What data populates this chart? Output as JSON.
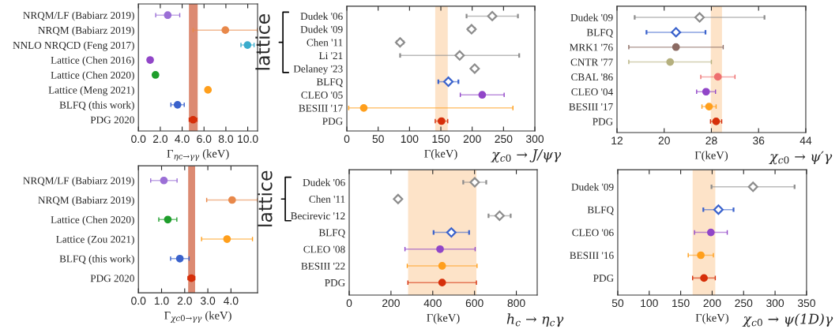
{
  "chart_data": [
    {
      "type": "scatter",
      "orientation": "horizontal",
      "categories": [
        "NRQM/LF (Babiarz 2019)",
        "NRQM (Babiarz 2019)",
        "NNLO NRQCD (Feng 2017)",
        "Lattice (Chen 2016)",
        "Lattice (Chen 2020)",
        "Lattice (Meng 2021)",
        "BLFQ (this work)",
        "PDG 2020"
      ],
      "series": [
        {
          "marker": "circle",
          "colors": [
            "#9b6fd6",
            "#e8884a",
            "#3aaccc",
            "#9146c8",
            "#1f9e2c",
            "#ff9f1c",
            "#3a62cc",
            "#d62f0a"
          ],
          "values": [
            2.68,
            7.95,
            9.98,
            1.07,
            1.56,
            6.36,
            3.58,
            5.0
          ],
          "errors": [
            1.1,
            2.95,
            0.6,
            0.05,
            0.1,
            0.1,
            0.61,
            0.36
          ]
        }
      ],
      "xlim": [
        0,
        10.9
      ],
      "xticks": [
        {
          "value": 0,
          "label": "0.0"
        },
        {
          "value": 2,
          "label": "2.0"
        },
        {
          "value": 4,
          "label": "4.0"
        },
        {
          "value": 6,
          "label": "6.0"
        },
        {
          "value": 8,
          "label": "8.0"
        },
        {
          "value": 10,
          "label": "10.0"
        }
      ],
      "xlabel": "Γ$_{ηc→γγ}$ (keV)",
      "bands": [
        {
          "axis": "x",
          "from": 4.62,
          "to": 5.42,
          "color": "#dc8a72"
        }
      ]
    },
    {
      "type": "scatter",
      "orientation": "horizontal",
      "categories": [
        "Dudek '06",
        "Dudek '09",
        "Chen '11",
        "Li '21",
        "Delaney '23",
        "BLFQ",
        "CLEO '05",
        "BESIII '17",
        "PDG"
      ],
      "series": [
        {
          "marker": "diamond",
          "colors": [
            "#8c8c8c",
            "#8c8c8c",
            "#8c8c8c",
            "#8c8c8c",
            "#8c8c8c",
            null,
            null,
            null,
            null
          ],
          "values": [
            232,
            199,
            85,
            180,
            204,
            null,
            null,
            null,
            null
          ],
          "errors": [
            41,
            5,
            5,
            95,
            4,
            null,
            null,
            null,
            null
          ]
        },
        {
          "marker": "diamond",
          "colors": [
            null,
            null,
            null,
            null,
            null,
            "#3a62cc",
            null,
            null,
            null
          ],
          "values": [
            null,
            null,
            null,
            null,
            null,
            162,
            null,
            null,
            null
          ],
          "errors": [
            null,
            null,
            null,
            null,
            null,
            16,
            null,
            null,
            null
          ]
        },
        {
          "marker": "circle",
          "colors": [
            null,
            null,
            null,
            null,
            null,
            null,
            "#9146c8",
            "#ff9f1c",
            "#d62f0a"
          ],
          "values": [
            null,
            null,
            null,
            null,
            null,
            null,
            216,
            27,
            151
          ],
          "errors": [
            null,
            null,
            null,
            null,
            null,
            null,
            35,
            [
              3,
              265
            ],
            10
          ]
        }
      ],
      "xlim": [
        0,
        300
      ],
      "xticks": [
        0,
        50,
        100,
        150,
        200,
        250,
        300
      ],
      "xlabel": "Γ(keV)",
      "title": "χ$_{c0}$ → J/ψγ",
      "annotations": [
        "lattice"
      ],
      "bands": [
        {
          "axis": "x",
          "from": 141,
          "to": 161,
          "color": "#fde3c8"
        }
      ]
    },
    {
      "type": "scatter",
      "orientation": "horizontal",
      "categories": [
        "Dudek '09",
        "BLFQ",
        "MRK1 '76",
        "CNTR '77",
        "CBAL '86",
        "CLEO '04",
        "BESIII '17",
        "PDG"
      ],
      "series": [
        {
          "marker": "diamond",
          "colors": [
            "#8c8c8c",
            "#3a62cc",
            null,
            null,
            null,
            null,
            null,
            null
          ],
          "values": [
            26,
            22,
            null,
            null,
            null,
            null,
            null,
            null
          ],
          "errors": [
            11,
            5,
            null,
            null,
            null,
            null,
            null,
            null
          ]
        },
        {
          "marker": "circle",
          "colors": [
            null,
            null,
            "#8b6a62",
            "#b5b07e",
            "#ee6f6f",
            "#9146c8",
            "#ff9f1c",
            "#d62f0a"
          ],
          "values": [
            null,
            null,
            22,
            21,
            29.1,
            27.1,
            27.6,
            28.8
          ],
          "errors": [
            null,
            null,
            8,
            7,
            2.9,
            1.6,
            1.2,
            0.95
          ]
        }
      ],
      "xlim": [
        12,
        44
      ],
      "xticks": [
        12,
        20,
        28,
        36,
        44
      ],
      "xlabel": "Γ(keV)",
      "title": "χ$_{c0}$ → ψ′γ",
      "bands": [
        {
          "axis": "x",
          "from": 27.9,
          "to": 29.8,
          "color": "#fde3c8"
        }
      ]
    },
    {
      "type": "scatter",
      "orientation": "horizontal",
      "categories": [
        "NRQM/LF (Babiarz 2019)",
        "NRQM (Babiarz 2019)",
        "Lattice (Chen 2020)",
        "Lattice (Zou 2021)",
        "BLFQ (this work)",
        "PDG 2020"
      ],
      "series": [
        {
          "marker": "circle",
          "colors": [
            "#9b6fd6",
            "#e8884a",
            "#1f9e2c",
            "#ff9f1c",
            "#3a62cc",
            "#d62f0a"
          ],
          "values": [
            1.1,
            4.05,
            1.27,
            3.83,
            1.79,
            2.29
          ],
          "errors": [
            0.57,
            1.1,
            0.39,
            1.1,
            0.4,
            0.15
          ]
        }
      ],
      "xlim": [
        0,
        5.15
      ],
      "xticks": [
        {
          "value": 0,
          "label": "0.0"
        },
        {
          "value": 1,
          "label": "1.0"
        },
        {
          "value": 2,
          "label": "2.0"
        },
        {
          "value": 3,
          "label": "3.0"
        },
        {
          "value": 4,
          "label": "4.0"
        }
      ],
      "xlabel": "Γ$_{χc0→γγ}$ (keV)",
      "bands": [
        {
          "axis": "x",
          "from": 2.15,
          "to": 2.45,
          "color": "#dc8a72"
        }
      ]
    },
    {
      "type": "scatter",
      "orientation": "horizontal",
      "categories": [
        "Dudek '06",
        "Chen '11",
        "Becirevic '12",
        "BLFQ",
        "CLEO '08",
        "BESIII '22",
        "PDG"
      ],
      "series": [
        {
          "marker": "diamond",
          "colors": [
            "#8c8c8c",
            "#8c8c8c",
            "#8c8c8c",
            null,
            null,
            null,
            null
          ],
          "values": [
            601,
            234,
            720,
            null,
            null,
            null,
            null
          ],
          "errors": [
            55,
            8,
            53,
            null,
            null,
            null,
            null
          ]
        },
        {
          "marker": "diamond",
          "colors": [
            null,
            null,
            null,
            "#3a62cc",
            null,
            null,
            null
          ],
          "values": [
            null,
            null,
            null,
            489,
            null,
            null,
            null
          ],
          "errors": [
            null,
            null,
            null,
            85,
            null,
            null,
            null
          ]
        },
        {
          "marker": "circle",
          "colors": [
            null,
            null,
            null,
            null,
            "#9146c8",
            "#ff9f1c",
            "#d62f0a"
          ],
          "values": [
            null,
            null,
            null,
            null,
            435,
            445,
            445
          ],
          "errors": [
            null,
            null,
            null,
            null,
            168,
            167,
            164
          ]
        }
      ],
      "xlim": [
        0,
        900
      ],
      "xticks": [
        0,
        200,
        400,
        600,
        800
      ],
      "xlabel": "Γ(keV)",
      "title": "h$_{c}$ → η$_{c}$γ",
      "annotations": [
        "lattice"
      ],
      "bands": [
        {
          "axis": "x",
          "from": 282,
          "to": 609,
          "color": "#fde3c8"
        }
      ]
    },
    {
      "type": "scatter",
      "orientation": "horizontal",
      "categories": [
        "Dudek '09",
        "BLFQ",
        "CLEO '06",
        "BESIII '16",
        "PDG"
      ],
      "series": [
        {
          "marker": "diamond",
          "colors": [
            "#8c8c8c",
            "#3a62cc",
            null,
            null,
            null
          ],
          "values": [
            265,
            210,
            null,
            null,
            null
          ],
          "errors": [
            66,
            24,
            null,
            null,
            null
          ]
        },
        {
          "marker": "circle",
          "colors": [
            null,
            null,
            "#9146c8",
            "#ff9f1c",
            "#d62f0a"
          ],
          "values": [
            null,
            null,
            198,
            182,
            187
          ],
          "errors": [
            null,
            null,
            26,
            20,
            18
          ]
        }
      ],
      "xlim": [
        50,
        350
      ],
      "xticks": [
        50,
        100,
        150,
        200,
        250,
        300,
        350
      ],
      "xlabel": "Γ(keV)",
      "title": "χ$_{c0}$ → ψ(1D)γ",
      "bands": [
        {
          "axis": "x",
          "from": 169,
          "to": 205,
          "color": "#fde3c8"
        }
      ]
    }
  ]
}
